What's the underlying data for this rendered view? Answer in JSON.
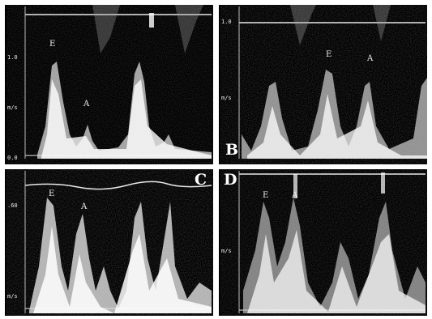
{
  "figure": {
    "panels": [
      {
        "id": "A",
        "corner": "",
        "axis": [
          "1.0",
          "m/s",
          "0.0"
        ],
        "waves": [
          "E",
          "A"
        ],
        "accent": "#ffffff"
      },
      {
        "id": "B",
        "corner": "B",
        "axis": [
          "1.0",
          "m/s"
        ],
        "waves": [
          "E",
          "A"
        ],
        "accent": "#ffffff"
      },
      {
        "id": "C",
        "corner": "C",
        "axis": [
          ".60",
          "m/s"
        ],
        "waves": [
          "E",
          "A"
        ],
        "accent": "#ffffff"
      },
      {
        "id": "D",
        "corner": "D",
        "axis": [
          "m/s"
        ],
        "waves": [
          "E",
          "A"
        ],
        "accent": "#ffffff"
      }
    ]
  }
}
